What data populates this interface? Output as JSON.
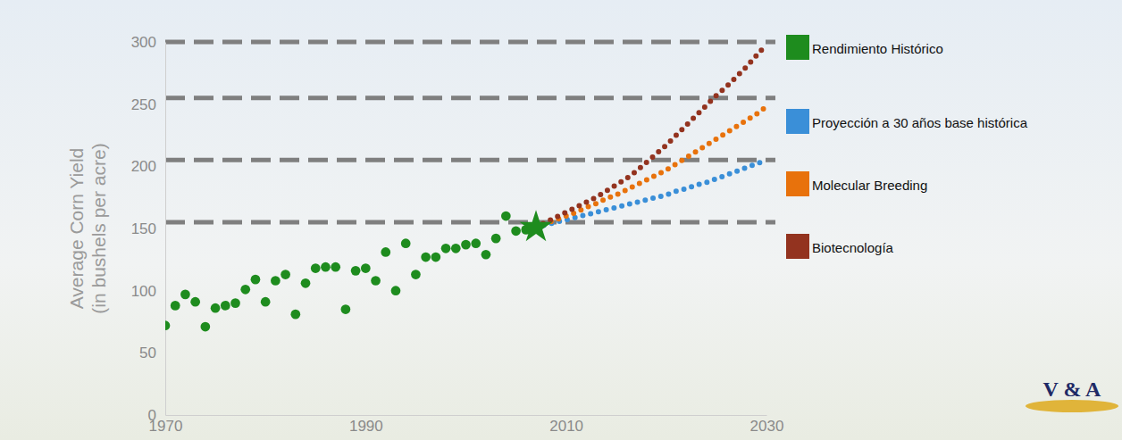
{
  "chart_data": {
    "type": "scatter",
    "y_label": "Average Corn Yield (in bushels per acre)",
    "xlim": [
      1970,
      2030
    ],
    "xticks": [
      1970,
      1990,
      2010,
      2030
    ],
    "ylim": [
      0,
      300
    ],
    "yticks": [
      0,
      50,
      100,
      150,
      200,
      250,
      300
    ],
    "grid": false,
    "legend": "right",
    "reference_lines": [
      300,
      255,
      205,
      155
    ],
    "highlight": {
      "x": 2007,
      "y": 151
    },
    "logo": "V & A",
    "series": [
      {
        "name": "Rendimiento Histórico",
        "color": "#1e8c1e",
        "type": "scatter",
        "marker": "circle",
        "x": [
          1970,
          1971,
          1972,
          1973,
          1974,
          1975,
          1976,
          1977,
          1978,
          1979,
          1980,
          1981,
          1982,
          1983,
          1984,
          1985,
          1986,
          1987,
          1988,
          1989,
          1990,
          1991,
          1992,
          1993,
          1994,
          1995,
          1996,
          1997,
          1998,
          1999,
          2000,
          2001,
          2002,
          2003,
          2004,
          2005,
          2006,
          2007
        ],
        "values": [
          72,
          88,
          97,
          91,
          71,
          86,
          88,
          90,
          101,
          109,
          91,
          108,
          113,
          81,
          106,
          118,
          119,
          119,
          85,
          116,
          118,
          108,
          131,
          100,
          138,
          113,
          127,
          127,
          134,
          134,
          137,
          138,
          129,
          142,
          160,
          148,
          149,
          151
        ]
      },
      {
        "name": "Proyección a 30 años base histórica",
        "color": "#3a8fd8",
        "type": "line",
        "line_style": "dotted",
        "x": [
          2007,
          2008,
          2009,
          2010,
          2011,
          2012,
          2013,
          2014,
          2015,
          2016,
          2017,
          2018,
          2019,
          2020,
          2021,
          2022,
          2023,
          2024,
          2025,
          2026,
          2027,
          2028,
          2029,
          2030
        ],
        "values": [
          151,
          153,
          155,
          157,
          159,
          161,
          163,
          165,
          167,
          169,
          171,
          173,
          175,
          177,
          180,
          182,
          185,
          187,
          190,
          193,
          196,
          199,
          202,
          205
        ]
      },
      {
        "name": "Molecular Breeding",
        "color": "#e8720c",
        "type": "line",
        "line_style": "dotted",
        "x": [
          2007,
          2008,
          2009,
          2010,
          2011,
          2012,
          2013,
          2014,
          2015,
          2016,
          2017,
          2018,
          2019,
          2020,
          2021,
          2022,
          2023,
          2024,
          2025,
          2026,
          2027,
          2028,
          2029,
          2030
        ],
        "values": [
          151,
          154,
          157,
          160,
          163,
          167,
          170,
          174,
          177,
          181,
          185,
          189,
          193,
          197,
          202,
          207,
          212,
          217,
          222,
          227,
          232,
          237,
          242,
          248
        ]
      },
      {
        "name": "Biotecnología",
        "color": "#93331f",
        "type": "line",
        "line_style": "dotted",
        "x": [
          2007,
          2008,
          2009,
          2010,
          2011,
          2012,
          2013,
          2014,
          2015,
          2016,
          2017,
          2018,
          2019,
          2020,
          2021,
          2022,
          2023,
          2024,
          2025,
          2026,
          2027,
          2028,
          2029,
          2030
        ],
        "values": [
          151,
          155,
          159,
          163,
          167,
          171,
          175,
          180,
          185,
          190,
          196,
          203,
          210,
          217,
          225,
          233,
          241,
          249,
          257,
          264,
          272,
          280,
          289,
          298
        ]
      }
    ]
  }
}
